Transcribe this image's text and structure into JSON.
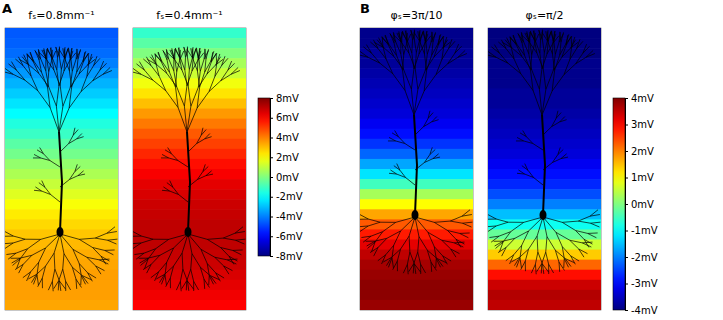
{
  "chart_data": [
    {
      "type": "heatmap",
      "panel": "A",
      "maps": [
        {
          "title": "fₛ=0.8mm⁻¹",
          "cells": [
            -4.6,
            -4.5,
            -4.3,
            -4.0,
            -3.6,
            -3.2,
            -2.8,
            -2.4,
            -2.0,
            -1.5,
            -1.1,
            -0.6,
            -0.2,
            0.3,
            0.7,
            1.1,
            1.5,
            1.9,
            2.3,
            2.6,
            2.9,
            3.1,
            3.3,
            3.4,
            3.5,
            3.5,
            3.5,
            3.4
          ]
        },
        {
          "title": "fₛ=0.4mm⁻¹",
          "cells": [
            -1.2,
            -0.6,
            0,
            0.6,
            1.2,
            1.8,
            2.4,
            3.0,
            3.6,
            4.1,
            4.6,
            5.0,
            5.4,
            5.8,
            6.1,
            6.4,
            6.6,
            6.8,
            6.9,
            7.0,
            7.0,
            7.0,
            6.9,
            6.8,
            6.6,
            6.4,
            6.2,
            6.0
          ]
        }
      ],
      "colorbar": {
        "lim": [
          -8,
          8
        ],
        "ticks": [
          {
            "value": -8,
            "label": "-8mV"
          },
          {
            "value": -6,
            "label": "-6mV"
          },
          {
            "value": -4,
            "label": "-4mV"
          },
          {
            "value": -2,
            "label": "-2mV"
          },
          {
            "value": 0,
            "label": "0mV"
          },
          {
            "value": 2,
            "label": "2mV"
          },
          {
            "value": 4,
            "label": "4mV"
          },
          {
            "value": 6,
            "label": "6mV"
          },
          {
            "value": 8,
            "label": "8mV"
          }
        ]
      }
    },
    {
      "type": "heatmap",
      "panel": "B",
      "maps": [
        {
          "title": "φₛ=3π/10",
          "cells": [
            -3.9,
            -3.9,
            -3.8,
            -3.8,
            -3.7,
            -3.6,
            -3.5,
            -3.4,
            -3.3,
            -3.1,
            -2.9,
            -2.6,
            -2.2,
            -1.7,
            -1.2,
            -0.5,
            0.3,
            1.0,
            1.7,
            2.3,
            2.8,
            3.2,
            3.5,
            3.7,
            3.8,
            3.9,
            3.9,
            3.8
          ]
        },
        {
          "title": "φₛ=π/2",
          "cells": [
            -4.0,
            -4.0,
            -4.0,
            -3.9,
            -3.9,
            -3.9,
            -3.8,
            -3.8,
            -3.7,
            -3.6,
            -3.5,
            -3.4,
            -3.3,
            -3.1,
            -2.9,
            -2.7,
            -2.4,
            -2.0,
            -1.5,
            -0.9,
            -0.2,
            0.6,
            1.4,
            2.2,
            2.9,
            3.4,
            3.6,
            3.5
          ]
        }
      ],
      "colorbar": {
        "lim": [
          -4,
          4
        ],
        "ticks": [
          {
            "value": -4,
            "label": "-4mV"
          },
          {
            "value": -3,
            "label": "-3mV"
          },
          {
            "value": -2,
            "label": "-2mV"
          },
          {
            "value": -1,
            "label": "-1mV"
          },
          {
            "value": 0,
            "label": "0mV"
          },
          {
            "value": 1,
            "label": "1mV"
          },
          {
            "value": 2,
            "label": "2mV"
          },
          {
            "value": 3,
            "label": "3mV"
          },
          {
            "value": 4,
            "label": "4mV"
          }
        ]
      }
    }
  ]
}
